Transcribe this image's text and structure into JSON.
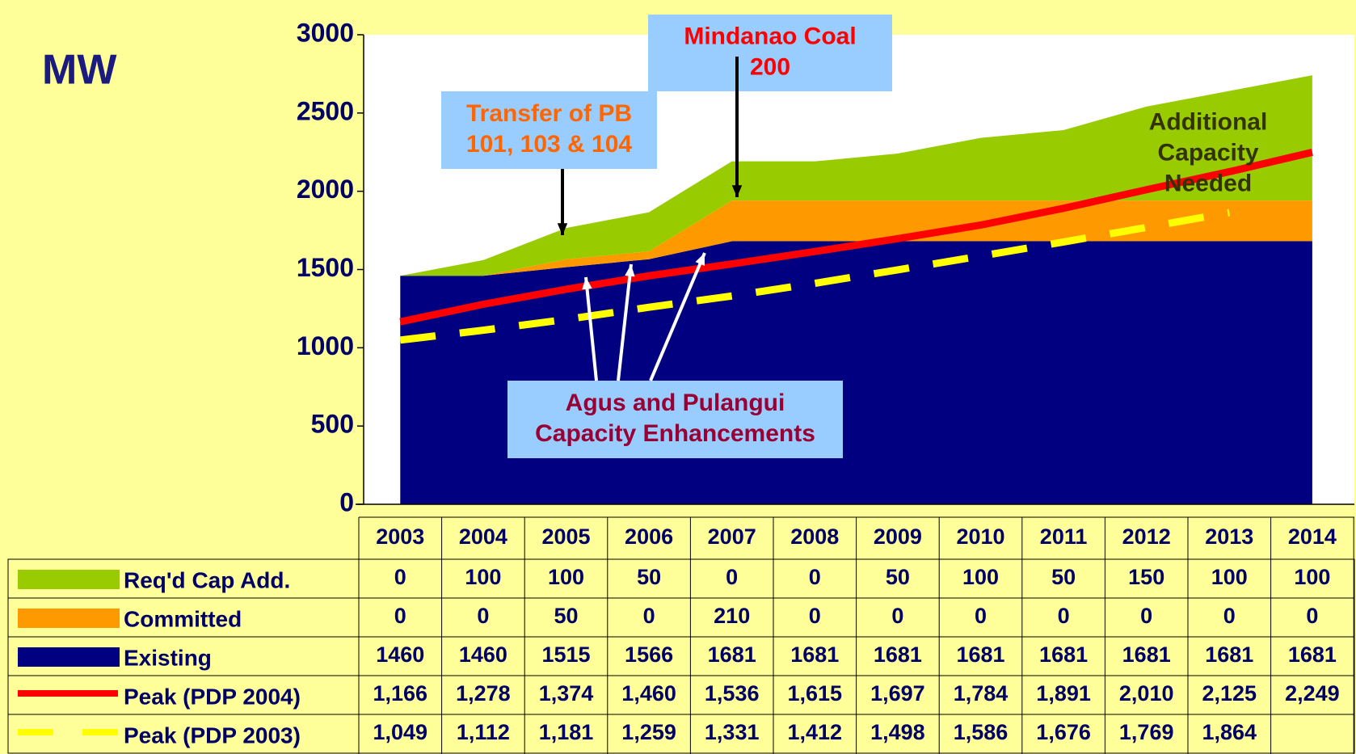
{
  "chart_data": {
    "type": "stacked_area_line",
    "y_axis_label": "MW",
    "categories": [
      "2003",
      "2004",
      "2005",
      "2006",
      "2007",
      "2008",
      "2009",
      "2010",
      "2011",
      "2012",
      "2013",
      "2014"
    ],
    "ylim": [
      0,
      3000
    ],
    "yticks": [
      0,
      500,
      1000,
      1500,
      2000,
      2500,
      3000
    ],
    "cumulative_stack": true,
    "series": [
      {
        "name": "Req'd Cap Add.",
        "kind": "area",
        "color": "#99cc00",
        "stack_order": 2,
        "values": [
          0,
          100,
          100,
          50,
          0,
          0,
          50,
          100,
          50,
          150,
          100,
          100
        ]
      },
      {
        "name": "Committed",
        "kind": "area",
        "color": "#ff9900",
        "stack_order": 1,
        "values": [
          0,
          0,
          50,
          0,
          210,
          0,
          0,
          0,
          0,
          0,
          0,
          0
        ]
      },
      {
        "name": "Existing",
        "kind": "area",
        "color": "#000080",
        "stack_order": 0,
        "values": [
          1460,
          1460,
          1515,
          1566,
          1681,
          1681,
          1681,
          1681,
          1681,
          1681,
          1681,
          1681
        ]
      },
      {
        "name": "Peak (PDP 2004)",
        "kind": "line",
        "color": "#ff0000",
        "dashed": false,
        "values": [
          1166,
          1278,
          1374,
          1460,
          1536,
          1615,
          1697,
          1784,
          1891,
          2010,
          2125,
          2249
        ],
        "value_labels": [
          "1,166",
          "1,278",
          "1,374",
          "1,460",
          "1,536",
          "1,615",
          "1,697",
          "1,784",
          "1,891",
          "2,010",
          "2,125",
          "2,249"
        ]
      },
      {
        "name": "Peak (PDP 2003)",
        "kind": "line",
        "color": "#ffff00",
        "dashed": true,
        "values": [
          1049,
          1112,
          1181,
          1259,
          1331,
          1412,
          1498,
          1586,
          1676,
          1769,
          1864,
          null
        ],
        "value_labels": [
          "1,049",
          "1,112",
          "1,181",
          "1,259",
          "1,331",
          "1,412",
          "1,498",
          "1,586",
          "1,676",
          "1,769",
          "1,864",
          null
        ]
      }
    ],
    "annotations": [
      {
        "lines": [
          "Mindanao Coal",
          "200"
        ],
        "color": "#ff0000",
        "box": "#99ccff"
      },
      {
        "lines": [
          "Transfer of PB",
          "101, 103 & 104"
        ],
        "color": "#ff6600",
        "box": "#99ccff"
      },
      {
        "lines": [
          "Agus and Pulangui",
          "Capacity Enhancements"
        ],
        "color": "#990033",
        "box": "#99ccff"
      },
      {
        "lines": [
          "Additional",
          "Capacity",
          "Needed"
        ],
        "color": "#333300",
        "box": null
      }
    ]
  }
}
